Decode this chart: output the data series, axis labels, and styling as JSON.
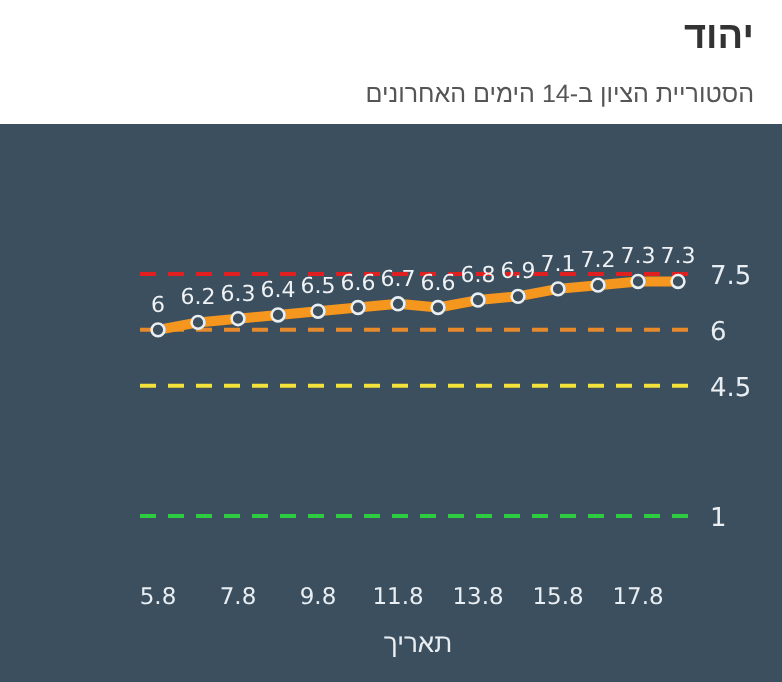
{
  "chart_data": {
    "type": "line",
    "title": "יהוד",
    "subtitle": "הסטוריית הציון ב-14 הימים האחרונים",
    "xlabel": "תאריך",
    "categories": [
      "5.8",
      null,
      "7.8",
      null,
      "9.8",
      null,
      "11.8",
      null,
      "13.8",
      null,
      "15.8",
      null,
      "17.8",
      null
    ],
    "values": [
      6,
      6.2,
      6.3,
      6.4,
      6.5,
      6.6,
      6.7,
      6.6,
      6.8,
      6.9,
      7.1,
      7.2,
      7.3,
      7.3
    ],
    "color": "#f5961e",
    "marker": "circle",
    "data_labels": true,
    "tick_labels": "x",
    "ref_lines": [
      {
        "axis": "y",
        "value": 7.5,
        "label": "7.5",
        "color": "#e02020",
        "line_style": "dashed"
      },
      {
        "axis": "y",
        "value": 6,
        "label": "6",
        "color": "#e8892b",
        "line_style": "dashed"
      },
      {
        "axis": "y",
        "value": 4.5,
        "label": "4.5",
        "color": "#f2e23a",
        "line_style": "dashed"
      },
      {
        "axis": "y",
        "value": 1,
        "label": "1",
        "color": "#2ecc40",
        "line_style": "dashed"
      }
    ]
  }
}
